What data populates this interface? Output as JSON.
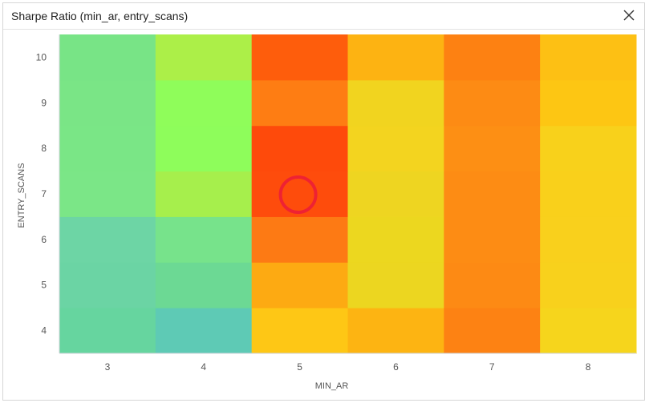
{
  "dialog": {
    "title": "Sharpe Ratio (min_ar, entry_scans)",
    "close_icon": "close-icon"
  },
  "chart_data": {
    "type": "heatmap",
    "title": "Sharpe Ratio (min_ar, entry_scans)",
    "xlabel": "MIN_AR",
    "ylabel": "ENTRY_SCANS",
    "x_categories": [
      "3",
      "4",
      "5",
      "6",
      "7",
      "8"
    ],
    "y_categories": [
      "4",
      "5",
      "6",
      "7",
      "8",
      "9",
      "10"
    ],
    "cells": [
      [
        "#66d59f",
        "#5ecab5",
        "#fec715",
        "#fdb412",
        "#fd8213",
        "#f6d51c"
      ],
      [
        "#6bd4a4",
        "#6cd994",
        "#fdaa12",
        "#ecd620",
        "#fd8a14",
        "#f8d11c"
      ],
      [
        "#6dd5a5",
        "#77e38b",
        "#fd7a14",
        "#ecd71f",
        "#fd8c14",
        "#f9d01c"
      ],
      [
        "#7be687",
        "#a6ef4c",
        "#fe4c0c",
        "#eed521",
        "#fd8c14",
        "#f9d01b"
      ],
      [
        "#7ae686",
        "#8efd5b",
        "#fe4a0b",
        "#f3d41f",
        "#fd8f14",
        "#f8d11b"
      ],
      [
        "#7ae586",
        "#8ffd5a",
        "#fe7d13",
        "#f1d41f",
        "#fd8b14",
        "#fdc613"
      ],
      [
        "#78e486",
        "#acef48",
        "#fe5d0c",
        "#fdb312",
        "#fd8112",
        "#fdc014"
      ]
    ],
    "highlight": {
      "x": "5",
      "y": "7",
      "color": "#ee2233"
    },
    "grid": false,
    "legend": "none"
  }
}
